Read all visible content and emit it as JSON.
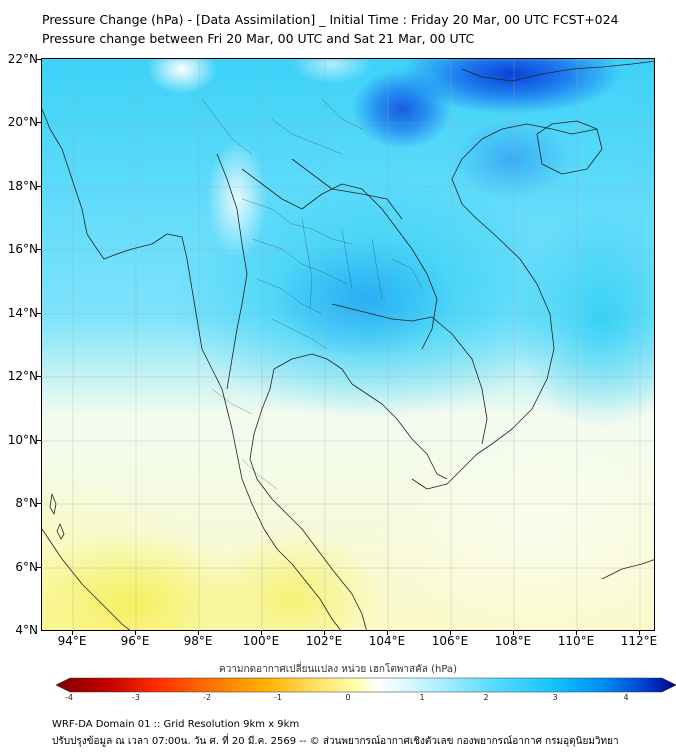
{
  "title_line1": "Pressure Change (hPa) - [Data Assimilation] _ Initial Time : Friday 20 Mar, 00 UTC FCST+024",
  "title_line2": "Pressure change between Fri 20 Mar, 00 UTC and Sat 21 Mar, 00 UTC",
  "lat_labels": [
    "22°N",
    "20°N",
    "18°N",
    "16°N",
    "14°N",
    "12°N",
    "10°N",
    "8°N",
    "6°N",
    "4°N"
  ],
  "lon_labels": [
    "94°E",
    "96°E",
    "98°E",
    "100°E",
    "102°E",
    "104°E",
    "106°E",
    "108°E",
    "110°E",
    "112°E"
  ],
  "colorbar": {
    "title": "ความกดอากาศเปลี่ยนแปลง หน่วย เฮกโตพาสคัล (hPa)",
    "ticks": [
      "-4",
      "-3",
      "-2",
      "-1",
      "0",
      "1",
      "2",
      "3",
      "4"
    ],
    "colors": [
      "#7f0000",
      "#d40000",
      "#ff3300",
      "#ff8000",
      "#ffb300",
      "#ffe066",
      "#ffff99",
      "#ffffff",
      "#ccf5ff",
      "#66e0ff",
      "#1ad1ff",
      "#00a0ff",
      "#0050e6",
      "#000080"
    ]
  },
  "footer_line1": "WRF-DA Domain 01 :: Grid Resolution 9km x 9km",
  "footer_line2": "ปรับปรุงข้อมูล ณ เวลา 07:00น. วัน ศ. ที่ 20 มี.ค. 2569 -- © ส่วนพยากรณ์อากาศเชิงตัวเลข กองพยากรณ์อากาศ กรมอุตุนิยมวิทยา"
}
